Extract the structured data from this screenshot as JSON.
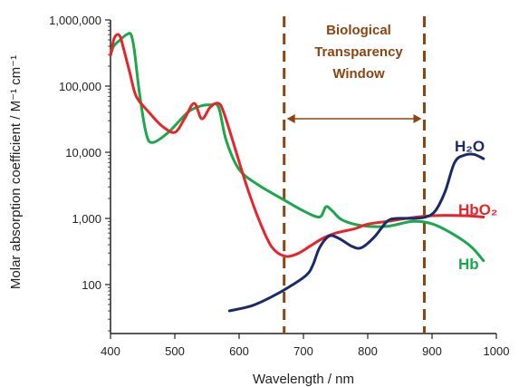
{
  "chart_data": {
    "type": "line",
    "xlabel": "Wavelength / nm",
    "ylabel": "Molar absorption coefficient  / M⁻¹ cm⁻¹",
    "xlim": [
      400,
      1000
    ],
    "ylim": [
      10,
      1000000
    ],
    "yscale": "log",
    "x_ticks": [
      400,
      500,
      600,
      700,
      800,
      900,
      1000
    ],
    "x_tick_labels": [
      "400",
      "500",
      "600",
      "700",
      "800",
      "900",
      "1000"
    ],
    "y_ticks": [
      100,
      1000,
      10000,
      100000,
      1000000
    ],
    "y_tick_labels": [
      "100",
      "1,000",
      "10,000",
      "100,000",
      "1,000,000"
    ],
    "grid": false,
    "series": [
      {
        "name": "HbO₂",
        "color": "#e8242b",
        "points": [
          [
            400,
            290000
          ],
          [
            405,
            500000
          ],
          [
            410,
            600000
          ],
          [
            415,
            560000
          ],
          [
            420,
            380000
          ],
          [
            430,
            160000
          ],
          [
            440,
            70000
          ],
          [
            460,
            40000
          ],
          [
            480,
            25000
          ],
          [
            500,
            20000
          ],
          [
            515,
            32000
          ],
          [
            530,
            55000
          ],
          [
            542,
            32000
          ],
          [
            555,
            48000
          ],
          [
            568,
            55000
          ],
          [
            576,
            40000
          ],
          [
            590,
            15000
          ],
          [
            610,
            3500
          ],
          [
            630,
            1000
          ],
          [
            650,
            380
          ],
          [
            670,
            270
          ],
          [
            690,
            290
          ],
          [
            710,
            380
          ],
          [
            730,
            500
          ],
          [
            750,
            600
          ],
          [
            780,
            700
          ],
          [
            800,
            820
          ],
          [
            830,
            900
          ],
          [
            860,
            1000
          ],
          [
            900,
            1100
          ],
          [
            950,
            1100
          ],
          [
            980,
            1050
          ]
        ]
      },
      {
        "name": "Hb",
        "color": "#1aa84a",
        "points": [
          [
            400,
            290000
          ],
          [
            405,
            400000
          ],
          [
            415,
            500000
          ],
          [
            425,
            600000
          ],
          [
            432,
            600000
          ],
          [
            437,
            350000
          ],
          [
            445,
            80000
          ],
          [
            455,
            20000
          ],
          [
            465,
            14000
          ],
          [
            490,
            20000
          ],
          [
            520,
            40000
          ],
          [
            540,
            50000
          ],
          [
            555,
            52000
          ],
          [
            568,
            48000
          ],
          [
            580,
            15000
          ],
          [
            600,
            5500
          ],
          [
            630,
            3200
          ],
          [
            670,
            1900
          ],
          [
            700,
            1300
          ],
          [
            725,
            1050
          ],
          [
            735,
            1500
          ],
          [
            745,
            1300
          ],
          [
            760,
            950
          ],
          [
            790,
            780
          ],
          [
            830,
            760
          ],
          [
            870,
            900
          ],
          [
            900,
            830
          ],
          [
            930,
            600
          ],
          [
            960,
            380
          ],
          [
            980,
            230
          ]
        ]
      },
      {
        "name": "H₂O",
        "color": "#1b2a6b",
        "points": [
          [
            585,
            40
          ],
          [
            620,
            48
          ],
          [
            650,
            65
          ],
          [
            680,
            95
          ],
          [
            705,
            140
          ],
          [
            715,
            200
          ],
          [
            725,
            360
          ],
          [
            740,
            540
          ],
          [
            755,
            500
          ],
          [
            775,
            380
          ],
          [
            790,
            360
          ],
          [
            810,
            520
          ],
          [
            830,
            900
          ],
          [
            845,
            1000
          ],
          [
            870,
            1000
          ],
          [
            890,
            1050
          ],
          [
            905,
            1300
          ],
          [
            920,
            2500
          ],
          [
            935,
            7000
          ],
          [
            950,
            9000
          ],
          [
            965,
            9300
          ],
          [
            980,
            8000
          ]
        ]
      }
    ],
    "annotations": {
      "window_title": [
        "Biological",
        "Transparency",
        "Window"
      ],
      "window_bounds": [
        670,
        888
      ],
      "window_color": "#8B4513"
    }
  }
}
